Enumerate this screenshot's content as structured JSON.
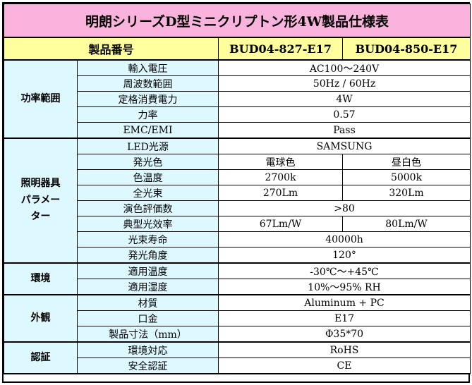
{
  "title": "明朗シリーズD型ミニクリプトン形4W製品仕様表",
  "header": {
    "label": "製品番号",
    "models": [
      "BUD04-827-E17",
      "BUD04-850-E17"
    ]
  },
  "sections": [
    {
      "category": [
        "功率範囲"
      ],
      "rows": [
        {
          "label": "輸入電圧",
          "values": [
            "AC100～240V"
          ]
        },
        {
          "label": "周波数範囲",
          "values": [
            "50Hz / 60Hz"
          ]
        },
        {
          "label": "定格消費電力",
          "values": [
            "4W"
          ]
        },
        {
          "label": "力率",
          "values": [
            "0.57"
          ]
        },
        {
          "label": "EMC/EMI",
          "values": [
            "Pass"
          ]
        }
      ]
    },
    {
      "category": [
        "照明器具",
        "パラメー",
        "ター"
      ],
      "rows": [
        {
          "label": "LED光源",
          "values": [
            "SAMSUNG"
          ]
        },
        {
          "label": "発光色",
          "values": [
            "電球色",
            "昼白色"
          ]
        },
        {
          "label": "色温度",
          "values": [
            "2700k",
            "5000k"
          ]
        },
        {
          "label": "全光束",
          "values": [
            "270Lm",
            "320Lm"
          ]
        },
        {
          "label": "演色評価数",
          "values": [
            ">80"
          ]
        },
        {
          "label": "典型光效率",
          "values": [
            "67Lm/W",
            "80Lm/W"
          ]
        },
        {
          "label": "光束寿命",
          "values": [
            "40000h"
          ]
        },
        {
          "label": "発光角度",
          "values": [
            "120°"
          ]
        }
      ]
    },
    {
      "category": [
        "環境"
      ],
      "rows": [
        {
          "label": "適用温度",
          "values": [
            "-30℃～+45℃"
          ]
        },
        {
          "label": "適用湿度",
          "values": [
            "10%～95% RH"
          ]
        }
      ]
    },
    {
      "category": [
        "外観"
      ],
      "rows": [
        {
          "label": "材質",
          "values": [
            "Aluminum + PC"
          ]
        },
        {
          "label": "口金",
          "values": [
            "E17"
          ]
        },
        {
          "label": "製品寸法（mm）",
          "values": [
            "Φ35*70"
          ]
        }
      ]
    },
    {
      "category": [
        "認証"
      ],
      "rows": [
        {
          "label": "環境対応",
          "values": [
            "RoHS"
          ]
        },
        {
          "label": "安全認証",
          "values": [
            "CE"
          ]
        }
      ]
    }
  ],
  "colors": {
    "title_bg": "#f9b3dc",
    "header_bg": "#ffff9e",
    "label_bg": "#ddf8ff",
    "value_bg": "#ffffff"
  }
}
